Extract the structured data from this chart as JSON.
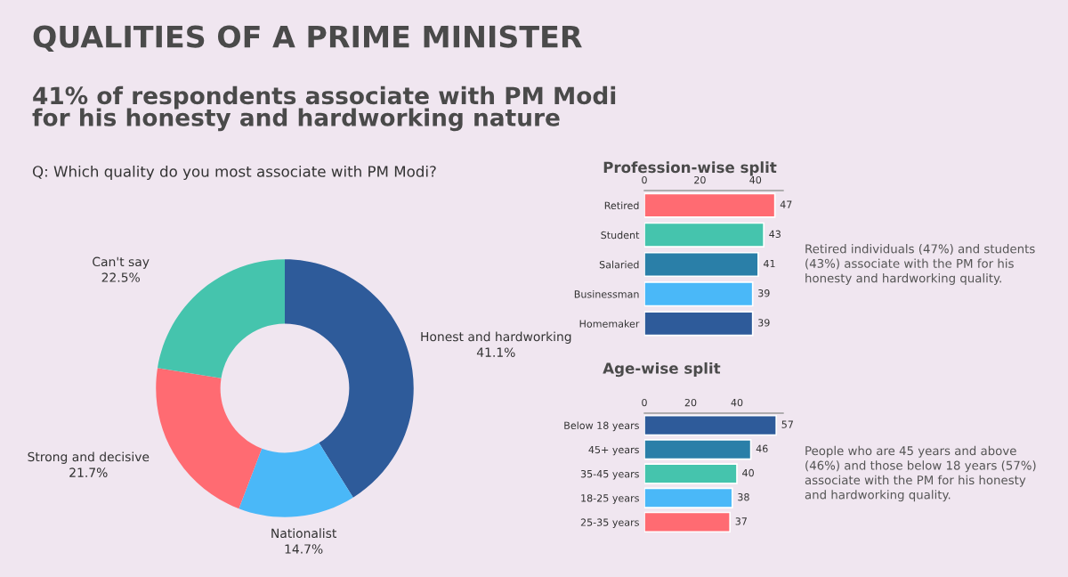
{
  "chart_data": [
    {
      "type": "donut",
      "title": "QUALITIES OF A PRIME MINISTER",
      "subtitle": "41% of respondents associate with PM Modi\nfor his honesty and hardworking nature",
      "annotations": [
        "Q: Which quality do you most associate with PM Modi?"
      ],
      "categories": [
        "Honest and hardworking",
        "Nationalist",
        "Strong and decisive",
        "Can't say"
      ],
      "values": [
        41.1,
        14.7,
        21.7,
        22.5
      ],
      "value_labels": [
        "41.1%",
        "14.7%",
        "21.7%",
        "22.5%"
      ],
      "colors": [
        "#2e5b9a",
        "#4ab8f8",
        "#ff6b72",
        "#45c4ad"
      ]
    },
    {
      "type": "bar",
      "orientation": "horizontal",
      "title": "Profession-wise split",
      "annotations": [
        "Retired individuals (47%) and students\n(43%) associate with the PM for his\nhonesty and hardworking quality."
      ],
      "categories": [
        "Retired",
        "Student",
        "Salaried",
        "Businessman",
        "Homemaker"
      ],
      "values": [
        47,
        43,
        41,
        39,
        39
      ],
      "colors": [
        "#ff6b72",
        "#45c4ad",
        "#2a7fa8",
        "#4ab8f8",
        "#2e5b9a"
      ],
      "xlim": [
        0,
        50
      ],
      "xticks": [
        0,
        20,
        40
      ],
      "data_labels": true
    },
    {
      "type": "bar",
      "orientation": "horizontal",
      "title": "Age-wise split",
      "annotations": [
        "People who are 45 years and above\n(46%) and those below 18 years (57%)\nassociate with the PM for his honesty\nand hardworking quality."
      ],
      "categories": [
        "Below 18 years",
        "45+ years",
        "35-45 years",
        "18-25 years",
        "25-35 years"
      ],
      "values": [
        57,
        46,
        40,
        38,
        37
      ],
      "colors": [
        "#2e5b9a",
        "#2a7fa8",
        "#45c4ad",
        "#4ab8f8",
        "#ff6b72"
      ],
      "xlim": [
        0,
        60
      ],
      "xticks": [
        0,
        20,
        40
      ],
      "data_labels": true
    }
  ]
}
